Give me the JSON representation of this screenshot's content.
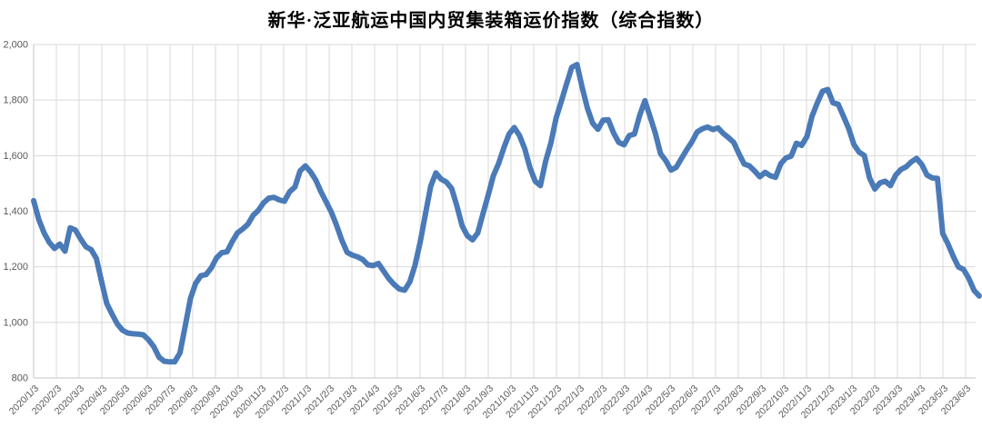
{
  "title": "新华·泛亚航运中国内贸集装箱运价指数（综合指数）",
  "chart_data": {
    "type": "line",
    "title": "新华·泛亚航运中国内贸集装箱运价指数（综合指数）",
    "xlabel": "",
    "ylabel": "",
    "ylim": [
      800,
      2000
    ],
    "grid": true,
    "legend": "none",
    "line_color": "#4a7ab7",
    "grid_color": "#d9d9d9",
    "axis_line_color": "#c6c6c6",
    "tick_label_color": "#595959",
    "y_tick_labels": [
      "2,000",
      "1,800",
      "1,600",
      "1,400",
      "1,200",
      "1,000",
      "800"
    ],
    "y_tick_values": [
      2000,
      1800,
      1600,
      1400,
      1200,
      1000,
      800
    ],
    "x_tick_labels": [
      "2020/1/3",
      "2020/2/3",
      "2020/3/3",
      "2020/4/3",
      "2020/5/3",
      "2020/6/3",
      "2020/7/3",
      "2020/8/3",
      "2020/9/3",
      "2020/10/3",
      "2020/11/3",
      "2020/12/3",
      "2021/1/3",
      "2021/2/3",
      "2021/3/3",
      "2021/4/3",
      "2021/5/3",
      "2021/6/3",
      "2021/7/3",
      "2021/8/3",
      "2021/9/3",
      "2021/10/3",
      "2021/11/3",
      "2021/12/3",
      "2022/1/3",
      "2022/2/3",
      "2022/3/3",
      "2022/4/3",
      "2022/5/3",
      "2022/6/3",
      "2022/7/3",
      "2022/8/3",
      "2022/9/3",
      "2022/10/3",
      "2022/11/3",
      "2022/12/3",
      "2023/1/3",
      "2023/2/3",
      "2023/3/3",
      "2023/4/3",
      "2023/5/3",
      "2023/6/3"
    ],
    "series_start": "2020/1/3",
    "series_end": "2023/6/23",
    "frequency": "weekly",
    "values": [
      1438,
      1370,
      1322,
      1288,
      1266,
      1282,
      1256,
      1340,
      1332,
      1300,
      1272,
      1262,
      1230,
      1147,
      1068,
      1030,
      995,
      972,
      962,
      959,
      958,
      955,
      937,
      912,
      875,
      860,
      858,
      858,
      890,
      985,
      1085,
      1140,
      1168,
      1172,
      1196,
      1232,
      1251,
      1254,
      1290,
      1322,
      1336,
      1353,
      1385,
      1403,
      1430,
      1447,
      1450,
      1441,
      1436,
      1470,
      1487,
      1545,
      1563,
      1542,
      1512,
      1470,
      1433,
      1396,
      1348,
      1295,
      1252,
      1242,
      1236,
      1226,
      1207,
      1204,
      1212,
      1184,
      1157,
      1136,
      1120,
      1116,
      1146,
      1205,
      1290,
      1390,
      1490,
      1538,
      1515,
      1505,
      1482,
      1420,
      1348,
      1312,
      1297,
      1322,
      1390,
      1458,
      1528,
      1572,
      1628,
      1678,
      1701,
      1672,
      1625,
      1556,
      1508,
      1492,
      1580,
      1645,
      1735,
      1795,
      1858,
      1918,
      1928,
      1845,
      1770,
      1717,
      1695,
      1728,
      1729,
      1682,
      1648,
      1639,
      1672,
      1678,
      1745,
      1798,
      1740,
      1680,
      1607,
      1582,
      1548,
      1558,
      1590,
      1621,
      1650,
      1685,
      1697,
      1703,
      1694,
      1700,
      1680,
      1665,
      1648,
      1607,
      1570,
      1563,
      1545,
      1524,
      1540,
      1528,
      1522,
      1571,
      1592,
      1598,
      1645,
      1637,
      1668,
      1742,
      1790,
      1832,
      1838,
      1790,
      1785,
      1742,
      1698,
      1640,
      1613,
      1600,
      1520,
      1480,
      1502,
      1508,
      1492,
      1530,
      1550,
      1560,
      1578,
      1590,
      1568,
      1530,
      1520,
      1518,
      1320,
      1283,
      1238,
      1200,
      1190,
      1158,
      1115,
      1095
    ]
  }
}
